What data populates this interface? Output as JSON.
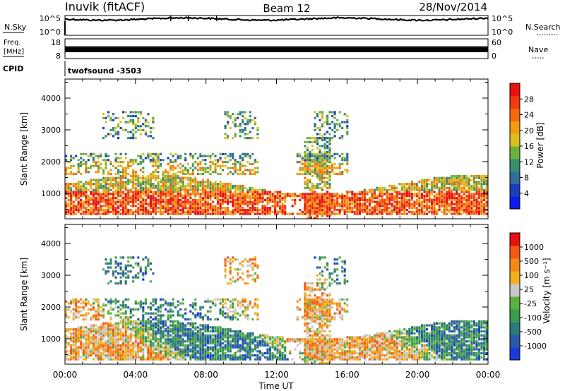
{
  "header": {
    "station": "Inuvik (fitACF)",
    "beam": "Beam 12",
    "date": "28/Nov/2014"
  },
  "top_panels": {
    "nsky_label": "N.Sky",
    "nsky_ticks": [
      "10^5",
      "10^0"
    ],
    "nsearch_label": "N.Search",
    "nsearch_ticks_right": [
      "10^5",
      "10^0"
    ],
    "freq_label": "Freq.",
    "freq_unit": "[MHz]",
    "freq_ticks": [
      "18",
      "8"
    ],
    "nave_label": "Nave",
    "nave_ticks": [
      "60",
      "0"
    ],
    "cpid_label": "CPID",
    "cpid_value": "twofsound  -3503"
  },
  "chart_data": [
    {
      "type": "heatmap",
      "panel": "power",
      "ylabel": "Slant Range [km]",
      "yticks": [
        1000,
        2000,
        3000,
        4000
      ],
      "ylim": [
        200,
        4600
      ],
      "xlim_hours": [
        0,
        24
      ],
      "colorbar": {
        "label": "Power [dB]",
        "ticks": [
          "4",
          "8",
          "12",
          "16",
          "20",
          "24",
          "28"
        ],
        "colors": [
          "#0a1cf0",
          "#1f3cb8",
          "#2e6e98",
          "#3a8f6a",
          "#6fb03a",
          "#d8c020",
          "#f29a10",
          "#f46a10",
          "#f23a12",
          "#e81010"
        ]
      }
    },
    {
      "type": "heatmap",
      "panel": "velocity",
      "ylabel": "Slant Range [km]",
      "yticks": [
        1000,
        2000,
        3000,
        4000
      ],
      "ylim": [
        200,
        4600
      ],
      "xlim_hours": [
        0,
        24
      ],
      "colorbar": {
        "label": "Velocity [m s⁻¹]",
        "ticks": [
          "1000",
          "500",
          "100",
          "25",
          "-25",
          "-100",
          "-500",
          "-1000"
        ],
        "colors": [
          "#1a3ad8",
          "#2a5aa8",
          "#2e7a7a",
          "#3a9a50",
          "#5ab040",
          "#c8c8c8",
          "#f0b020",
          "#f28a14",
          "#f25a12",
          "#e81010"
        ]
      }
    }
  ],
  "xaxis": {
    "ticks": [
      "00:00",
      "04:00",
      "08:00",
      "12:00",
      "16:00",
      "20:00",
      "00:00"
    ],
    "label": "Time UT"
  }
}
